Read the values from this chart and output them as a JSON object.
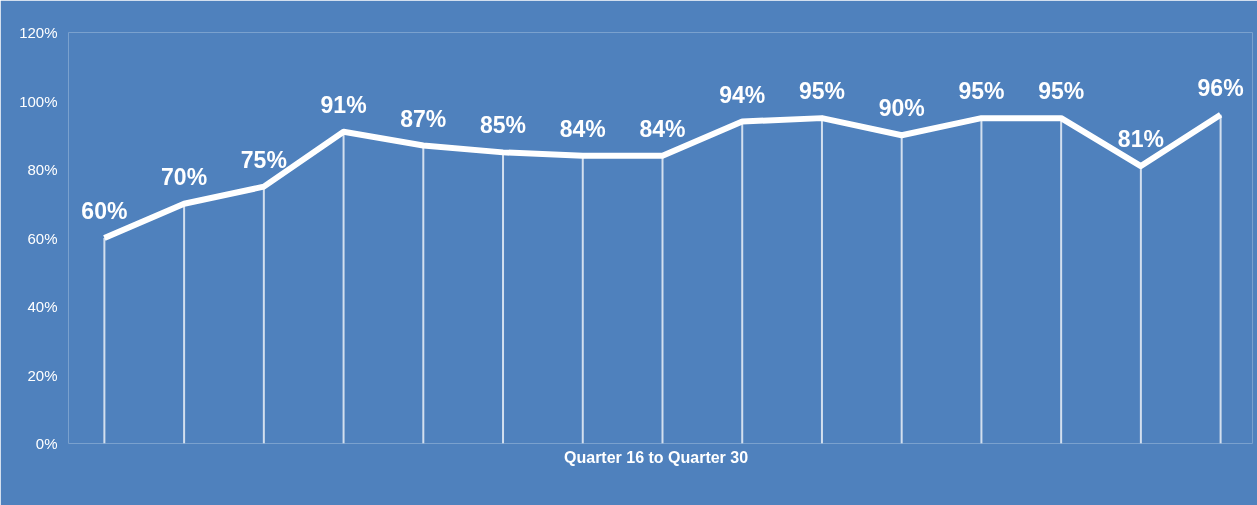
{
  "chart_data": {
    "type": "line",
    "xlabel": "Quarter  16  to Quarter 30",
    "categories": [
      null,
      null,
      null,
      null,
      null,
      null,
      null,
      null,
      null,
      null,
      null,
      null,
      null,
      null,
      null
    ],
    "series": [
      {
        "color": "#ffffff",
        "values": [
          60,
          70,
          75,
          91,
          87,
          85,
          84,
          84,
          94,
          95,
          90,
          95,
          95,
          81,
          96
        ],
        "value_labels": [
          "60%",
          "70%",
          "75%",
          "91%",
          "87%",
          "85%",
          "84%",
          "84%",
          "94%",
          "95%",
          "90%",
          "95%",
          "95%",
          "81%",
          "96%"
        ]
      }
    ],
    "ylim": [
      0,
      120
    ],
    "yticks": [
      {
        "value": 0,
        "label": "0%"
      },
      {
        "value": 20,
        "label": "20%"
      },
      {
        "value": 40,
        "label": "40%"
      },
      {
        "value": 60,
        "label": "60%"
      },
      {
        "value": 80,
        "label": "80%"
      },
      {
        "value": 100,
        "label": "100%"
      },
      {
        "value": 120,
        "label": "120%"
      }
    ],
    "grid": "x",
    "marker": "none",
    "line_style": "solid"
  }
}
